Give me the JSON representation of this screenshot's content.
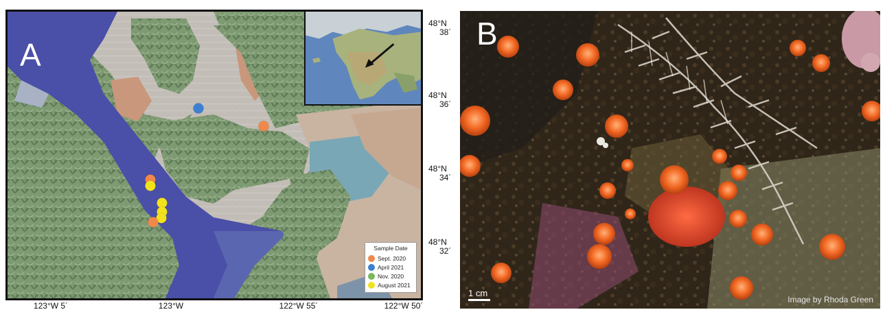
{
  "panel_a": {
    "letter": "A",
    "legend": {
      "title": "Sample Date",
      "items": [
        {
          "label": "Sept. 2020",
          "color": "#f0884a"
        },
        {
          "label": "April 2021",
          "color": "#3d7fd1"
        },
        {
          "label": "Nov. 2020",
          "color": "#79b85c"
        },
        {
          "label": "August 2021",
          "color": "#f2e21c"
        }
      ]
    },
    "latitude_labels": [
      {
        "deg": "48°N",
        "min": "38´"
      },
      {
        "deg": "48°N",
        "min": "36´"
      },
      {
        "deg": "48°N",
        "min": "34´"
      },
      {
        "deg": "48°N",
        "min": "32´"
      }
    ],
    "longitude_labels": [
      "123°W 5´",
      "123°W",
      "122°W 55´",
      "122°W 50´"
    ],
    "sample_points": [
      {
        "date": "April 2021",
        "color": "#3d7fd1"
      },
      {
        "date": "Sept. 2020",
        "color": "#f0884a"
      },
      {
        "date": "Sept. 2020",
        "color": "#f0884a"
      },
      {
        "date": "August 2021",
        "color": "#f2e21c"
      },
      {
        "date": "August 2021",
        "color": "#f2e21c"
      },
      {
        "date": "August 2021",
        "color": "#f2e21c"
      },
      {
        "date": "August 2021",
        "color": "#f2e21c"
      },
      {
        "date": "Sept. 2020",
        "color": "#f0884a"
      }
    ]
  },
  "panel_b": {
    "letter": "B",
    "scale_bar_label": "1 cm",
    "credit": "Image by Rhoda Green"
  }
}
